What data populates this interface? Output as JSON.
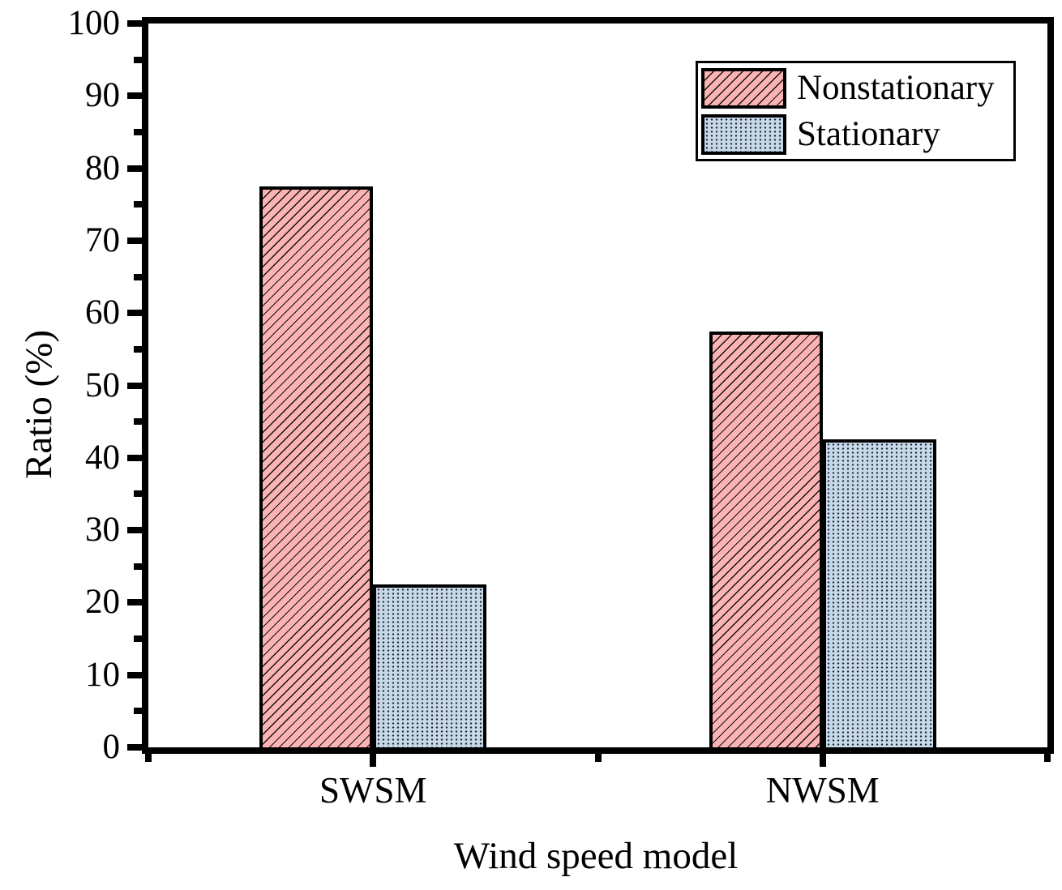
{
  "chart_data": {
    "type": "bar",
    "title": "",
    "xlabel": "Wind speed model",
    "ylabel": "Ratio (%)",
    "categories": [
      "SWSM",
      "NWSM"
    ],
    "series": [
      {
        "name": "Nonstationary",
        "values": [
          77.5,
          57.5
        ],
        "fill": "#FBB3B3",
        "pattern": "diagonal-hatch",
        "edge": "#000000"
      },
      {
        "name": "Stationary",
        "values": [
          22.5,
          42.5
        ],
        "fill": "#C6D9EB",
        "pattern": "dots",
        "edge": "#000000"
      }
    ],
    "ylim": [
      0,
      100
    ],
    "y_major_step": 10,
    "y_minor_step": 5,
    "y_major_tick_labels": [
      "0",
      "10",
      "20",
      "30",
      "40",
      "50",
      "60",
      "70",
      "80",
      "90",
      "100"
    ],
    "grid": false,
    "legend_position": "top-right",
    "axis_color": "#000000",
    "background": "#FFFFFF"
  },
  "legend": {
    "items": [
      {
        "label": "Nonstationary",
        "swatch": "pink-diagonal-hatch"
      },
      {
        "label": "Stationary",
        "swatch": "blue-dots"
      }
    ]
  }
}
